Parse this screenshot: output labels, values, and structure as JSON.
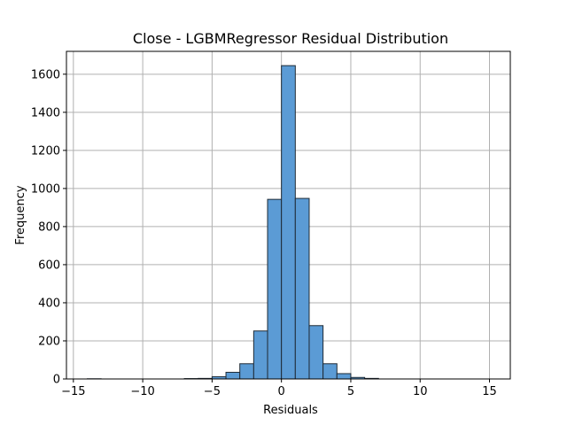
{
  "chart_data": {
    "type": "bar",
    "title": "Close - LGBMRegressor Residual Distribution",
    "xlabel": "Residuals",
    "ylabel": "Frequency",
    "xlim": [
      -15.5,
      16.5
    ],
    "ylim": [
      0,
      1720
    ],
    "xticks": [
      -15,
      -10,
      -5,
      0,
      5,
      10,
      15
    ],
    "xtick_labels": [
      "−15",
      "−10",
      "−5",
      "0",
      "5",
      "10",
      "15"
    ],
    "yticks": [
      0,
      200,
      400,
      600,
      800,
      1000,
      1200,
      1400,
      1600
    ],
    "ytick_labels": [
      "0",
      "200",
      "400",
      "600",
      "800",
      "1000",
      "1200",
      "1400",
      "1600"
    ],
    "grid": true,
    "bar_color": "#5b9bd5",
    "bar_edge_color": "#1f2b36",
    "bins": [
      {
        "x0": -14.0,
        "x1": -13.0,
        "count": 1
      },
      {
        "x0": -7.0,
        "x1": -6.0,
        "count": 2
      },
      {
        "x0": -6.0,
        "x1": -5.0,
        "count": 3
      },
      {
        "x0": -5.0,
        "x1": -4.0,
        "count": 12
      },
      {
        "x0": -4.0,
        "x1": -3.0,
        "count": 35
      },
      {
        "x0": -3.0,
        "x1": -2.0,
        "count": 80
      },
      {
        "x0": -2.0,
        "x1": -1.0,
        "count": 252
      },
      {
        "x0": -1.0,
        "x1": 0.0,
        "count": 943
      },
      {
        "x0": 0.0,
        "x1": 1.0,
        "count": 1645
      },
      {
        "x0": 1.0,
        "x1": 2.0,
        "count": 948
      },
      {
        "x0": 2.0,
        "x1": 3.0,
        "count": 280
      },
      {
        "x0": 3.0,
        "x1": 4.0,
        "count": 80
      },
      {
        "x0": 4.0,
        "x1": 5.0,
        "count": 28
      },
      {
        "x0": 5.0,
        "x1": 6.0,
        "count": 8
      },
      {
        "x0": 6.0,
        "x1": 7.0,
        "count": 3
      }
    ]
  }
}
